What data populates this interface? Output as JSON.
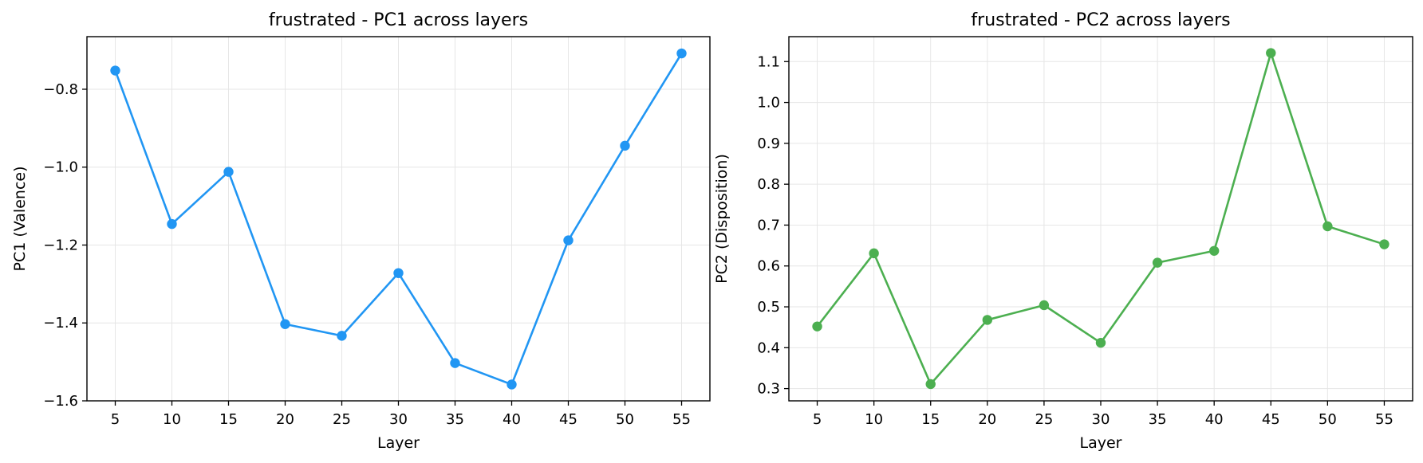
{
  "chart_data": [
    {
      "type": "line",
      "title": "frustrated - PC1 across layers",
      "xlabel": "Layer",
      "ylabel": "PC1 (Valence)",
      "x": [
        5,
        10,
        15,
        20,
        25,
        30,
        35,
        40,
        45,
        50,
        55
      ],
      "series": [
        {
          "values": [
            -0.752,
            -1.146,
            -1.012,
            -1.403,
            -1.433,
            -1.272,
            -1.503,
            -1.558,
            -1.188,
            -0.945,
            -0.708
          ]
        }
      ],
      "xticks": [
        5,
        10,
        15,
        20,
        25,
        30,
        35,
        40,
        45,
        50,
        55
      ],
      "yticks": [
        -1.6,
        -1.4,
        -1.2,
        -1.0,
        -0.8
      ],
      "ytick_labels": [
        "−1.6",
        "−1.4",
        "−1.2",
        "−1.0",
        "−0.8"
      ],
      "xlim": [
        2.5,
        57.5
      ],
      "ylim": [
        -1.6,
        -0.665
      ],
      "grid": true,
      "color": "#2196f3"
    },
    {
      "type": "line",
      "title": "frustrated - PC2 across layers",
      "xlabel": "Layer",
      "ylabel": "PC2 (Disposition)",
      "x": [
        5,
        10,
        15,
        20,
        25,
        30,
        35,
        40,
        45,
        50,
        55
      ],
      "series": [
        {
          "values": [
            0.452,
            0.631,
            0.311,
            0.468,
            0.504,
            0.412,
            0.608,
            0.637,
            1.121,
            0.697,
            0.653
          ]
        }
      ],
      "xticks": [
        5,
        10,
        15,
        20,
        25,
        30,
        35,
        40,
        45,
        50,
        55
      ],
      "yticks": [
        0.3,
        0.4,
        0.5,
        0.6,
        0.7,
        0.8,
        0.9,
        1.0,
        1.1
      ],
      "ytick_labels": [
        "0.3",
        "0.4",
        "0.5",
        "0.6",
        "0.7",
        "0.8",
        "0.9",
        "1.0",
        "1.1"
      ],
      "xlim": [
        2.5,
        57.5
      ],
      "ylim": [
        0.27,
        1.161
      ],
      "grid": true,
      "color": "#4caf50"
    }
  ]
}
